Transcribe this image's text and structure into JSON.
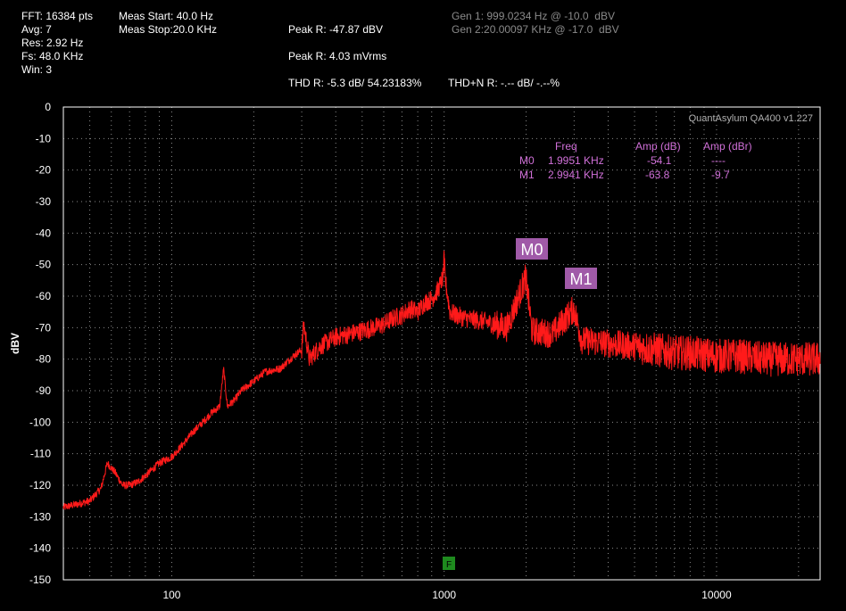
{
  "info": {
    "fft": "FFT: 16384 pts",
    "avg": "Avg: 7",
    "res": "Res: 2.92 Hz",
    "fs": "Fs: 48.0 KHz",
    "win": "Win: 3",
    "meas_start": "Meas Start: 40.0 Hz",
    "meas_stop": "Meas Stop:20.0 KHz",
    "peak_r_dbv": "Peak R: -47.87 dBV",
    "peak_r_mvrms": "Peak R: 4.03 mVrms",
    "thd_r": "THD R: -5.3 dB/ 54.23183%",
    "thdn_r": "THD+N R: -.-- dB/ -.--%",
    "gen1": "Gen 1: 999.0234 Hz @ -10.0  dBV",
    "gen2": "Gen 2:20.00097 KHz @ -17.0  dBV"
  },
  "watermark": "QuantAsylum QA400 v1.227",
  "legend": {
    "headers": {
      "freq": "Freq",
      "amp_db": "Amp (dB)",
      "amp_dbr": "Amp (dBr)"
    },
    "rows": [
      {
        "name": "M0",
        "freq": "1.9951 KHz",
        "amp_db": "-54.1",
        "amp_dbr": "----"
      },
      {
        "name": "M1",
        "freq": "2.9941 KHz",
        "amp_db": "-63.8",
        "amp_dbr": "-9.7"
      }
    ]
  },
  "markers": {
    "m0": "M0",
    "m1": "M1",
    "f": "F"
  },
  "colors": {
    "background": "#000000",
    "trace": "#ff1a1a",
    "trace_dark": "#c81010",
    "grid": "#8a8a8a",
    "frame": "#ffffff",
    "marker_bg": "#a05aa8",
    "legend_text": "#d070d8",
    "f_marker_bg": "#1e8a1e"
  },
  "chart_data": {
    "type": "line",
    "ylabel": "dBV",
    "xlabel": "",
    "xscale": "log",
    "xlim": [
      40,
      24000
    ],
    "ylim": [
      -150,
      0
    ],
    "x_ticks": [
      {
        "value": 100,
        "label": "100"
      },
      {
        "value": 1000,
        "label": "1000"
      },
      {
        "value": 10000,
        "label": "10000"
      }
    ],
    "y_ticks": [
      {
        "value": 0,
        "label": "0"
      },
      {
        "value": -10,
        "label": "-10"
      },
      {
        "value": -20,
        "label": "-20"
      },
      {
        "value": -30,
        "label": "-30"
      },
      {
        "value": -40,
        "label": "-40"
      },
      {
        "value": -50,
        "label": "-50"
      },
      {
        "value": -60,
        "label": "-60"
      },
      {
        "value": -70,
        "label": "-70"
      },
      {
        "value": -80,
        "label": "-80"
      },
      {
        "value": -90,
        "label": "-90"
      },
      {
        "value": -100,
        "label": "-100"
      },
      {
        "value": -110,
        "label": "-110"
      },
      {
        "value": -120,
        "label": "-120"
      },
      {
        "value": -130,
        "label": "-130"
      },
      {
        "value": -140,
        "label": "-140"
      },
      {
        "value": -150,
        "label": "-150"
      }
    ],
    "grid": true,
    "series": [
      {
        "x": [
          40,
          45,
          50,
          55,
          58,
          62,
          66,
          70,
          75,
          80,
          90,
          100,
          110,
          120,
          130,
          140,
          150,
          155,
          160,
          170,
          180,
          200,
          220,
          250,
          280,
          300,
          305,
          320,
          350,
          400,
          450,
          500,
          550,
          600,
          650,
          700,
          750,
          800,
          850,
          900,
          950,
          990,
          1000,
          1010,
          1050,
          1100,
          1200,
          1400,
          1700,
          1995,
          2100,
          2500,
          2994,
          3200,
          4000,
          5000,
          6000,
          7000,
          8000,
          10000,
          12000,
          15000,
          18000,
          20000,
          24000
        ],
        "y": [
          -127,
          -126,
          -125,
          -121,
          -113,
          -116,
          -120,
          -120,
          -119,
          -117,
          -113,
          -111,
          -107,
          -103,
          -100,
          -97,
          -95,
          -83,
          -95,
          -93,
          -90,
          -87,
          -84,
          -83,
          -79,
          -77,
          -69,
          -80,
          -76,
          -73,
          -72,
          -71,
          -70,
          -69,
          -67,
          -66,
          -64,
          -65,
          -62,
          -61,
          -58,
          -54,
          -48,
          -55,
          -65,
          -66,
          -67,
          -68,
          -70,
          -54,
          -71,
          -72,
          -64,
          -74,
          -75,
          -76,
          -77,
          -78,
          -78,
          -79,
          -79,
          -80,
          -80,
          -80,
          -80
        ]
      }
    ],
    "annotations": [
      {
        "label": "M0",
        "x": 1995.1,
        "y": -54.1
      },
      {
        "label": "M1",
        "x": 2994.1,
        "y": -63.8
      },
      {
        "label": "F",
        "x": 999.0
      }
    ]
  }
}
